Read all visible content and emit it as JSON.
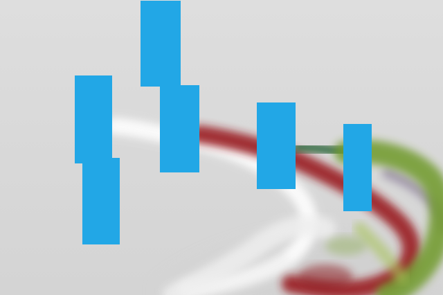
{
  "image": {
    "colors": {
      "sky": "#d9d9d9",
      "smoke_white": "#f2f2f2",
      "smoke_red": "#9a1f24",
      "smoke_green": "#6f9a2a",
      "smoke_dark_green": "#1f5a2a",
      "smoke_purple": "#7a6a8a",
      "redaction_block": "#22a7e6"
    }
  }
}
